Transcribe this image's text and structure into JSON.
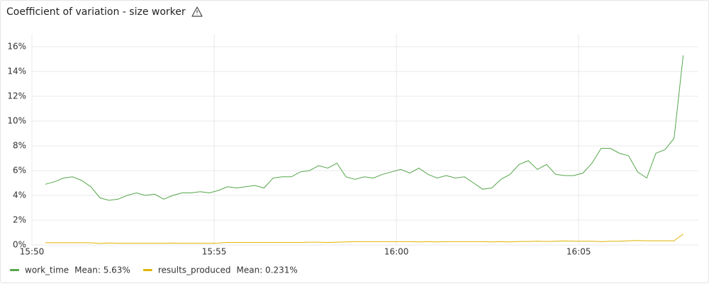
{
  "chart_data": {
    "type": "line",
    "title": "Coefficient of variation - size worker",
    "x": [
      "15:50:22",
      "15:50:37",
      "15:50:52",
      "15:51:07",
      "15:51:22",
      "15:51:37",
      "15:51:52",
      "15:52:07",
      "15:52:22",
      "15:52:37",
      "15:52:52",
      "15:53:07",
      "15:53:22",
      "15:53:37",
      "15:53:52",
      "15:54:07",
      "15:54:22",
      "15:54:37",
      "15:54:52",
      "15:55:07",
      "15:55:22",
      "15:55:37",
      "15:55:52",
      "15:56:07",
      "15:56:22",
      "15:56:37",
      "15:56:52",
      "15:57:07",
      "15:57:22",
      "15:57:37",
      "15:57:52",
      "15:58:07",
      "15:58:22",
      "15:58:37",
      "15:58:52",
      "15:59:07",
      "15:59:22",
      "15:59:37",
      "15:59:52",
      "16:00:07",
      "16:00:22",
      "16:00:37",
      "16:00:52",
      "16:01:07",
      "16:01:22",
      "16:01:37",
      "16:01:52",
      "16:02:07",
      "16:02:22",
      "16:02:37",
      "16:02:52",
      "16:03:07",
      "16:03:22",
      "16:03:37",
      "16:03:52",
      "16:04:07",
      "16:04:22",
      "16:04:37",
      "16:04:52",
      "16:05:07",
      "16:05:22",
      "16:05:37",
      "16:05:52",
      "16:06:07",
      "16:06:22",
      "16:06:37",
      "16:06:52",
      "16:07:07",
      "16:07:22",
      "16:07:37",
      "16:07:52"
    ],
    "series": [
      {
        "name": "work_time",
        "color": "#56a64b",
        "legend_value": "Mean: 5.63%",
        "values": [
          4.9,
          5.1,
          5.4,
          5.5,
          5.2,
          4.7,
          3.8,
          3.6,
          3.7,
          4.0,
          4.2,
          4.0,
          4.1,
          3.7,
          4.0,
          4.2,
          4.2,
          4.3,
          4.2,
          4.4,
          4.7,
          4.6,
          4.7,
          4.8,
          4.6,
          5.4,
          5.5,
          5.5,
          5.9,
          6.0,
          6.4,
          6.2,
          6.6,
          5.5,
          5.3,
          5.5,
          5.4,
          5.7,
          5.9,
          6.1,
          5.8,
          6.2,
          5.7,
          5.4,
          5.6,
          5.4,
          5.5,
          5.0,
          4.5,
          4.6,
          5.3,
          5.7,
          6.5,
          6.8,
          6.1,
          6.5,
          5.7,
          5.6,
          5.6,
          5.8,
          6.6,
          7.8,
          7.8,
          7.4,
          7.2,
          5.9,
          5.4,
          7.4,
          7.7,
          8.6,
          15.3
        ]
      },
      {
        "name": "results_produced",
        "color": "#e0b400",
        "legend_value": "Mean: 0.231%",
        "values": [
          0.18,
          0.18,
          0.18,
          0.18,
          0.18,
          0.17,
          0.12,
          0.16,
          0.14,
          0.14,
          0.14,
          0.14,
          0.14,
          0.14,
          0.15,
          0.14,
          0.14,
          0.14,
          0.14,
          0.15,
          0.2,
          0.2,
          0.2,
          0.2,
          0.2,
          0.2,
          0.2,
          0.2,
          0.2,
          0.22,
          0.22,
          0.2,
          0.22,
          0.24,
          0.26,
          0.26,
          0.26,
          0.26,
          0.26,
          0.26,
          0.26,
          0.24,
          0.26,
          0.24,
          0.26,
          0.26,
          0.26,
          0.26,
          0.26,
          0.24,
          0.26,
          0.24,
          0.28,
          0.28,
          0.3,
          0.28,
          0.3,
          0.32,
          0.3,
          0.3,
          0.3,
          0.26,
          0.3,
          0.3,
          0.34,
          0.36,
          0.34,
          0.34,
          0.34,
          0.34,
          0.88
        ]
      }
    ],
    "xlim": [
      "15:50:00",
      "16:08:17"
    ],
    "xticks": [
      {
        "value": "15:50:00",
        "label": "15:50"
      },
      {
        "value": "15:55:00",
        "label": "15:55"
      },
      {
        "value": "16:00:00",
        "label": "16:00"
      },
      {
        "value": "16:05:00",
        "label": "16:05"
      }
    ],
    "ylim": [
      0,
      16
    ],
    "yticks": [
      {
        "value": 0,
        "label": "0%"
      },
      {
        "value": 2,
        "label": "2%"
      },
      {
        "value": 4,
        "label": "4%"
      },
      {
        "value": 6,
        "label": "6%"
      },
      {
        "value": 8,
        "label": "8%"
      },
      {
        "value": 10,
        "label": "10%"
      },
      {
        "value": 12,
        "label": "12%"
      },
      {
        "value": 14,
        "label": "14%"
      },
      {
        "value": 16,
        "label": "16%"
      }
    ],
    "grid": true
  }
}
